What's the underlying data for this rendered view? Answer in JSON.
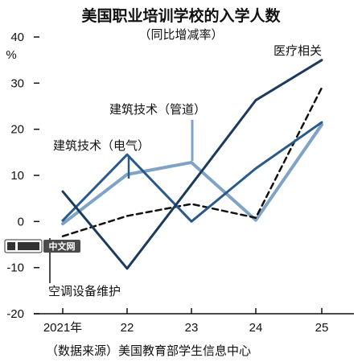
{
  "chart_data": {
    "type": "line",
    "title": "美国职业培训学校的入学人数",
    "subtitle": "（同比增减率）",
    "unit": "%",
    "categories": [
      "2021年",
      "22",
      "23",
      "24",
      "25"
    ],
    "ylim": [
      -20,
      40
    ],
    "yticks": [
      -20,
      -10,
      0,
      10,
      20,
      30,
      40
    ],
    "grid": false,
    "series": [
      {
        "name": "医疗相关",
        "color": "#1b3a5c",
        "dash": false,
        "values": [
          6.5,
          -10.2,
          8.0,
          26.3,
          35.0
        ]
      },
      {
        "name": "建筑技术（管道）",
        "color": "#7fa3c6",
        "dash": false,
        "values": [
          -0.5,
          10.2,
          12.8,
          0.3,
          21.0
        ]
      },
      {
        "name": "建筑技术（电气）",
        "color": "#2a5a8a",
        "dash": false,
        "values": [
          0.2,
          14.5,
          0.0,
          11.5,
          21.5
        ]
      },
      {
        "name": "空调设备维护",
        "color": "#111111",
        "dash": true,
        "values": [
          -3.2,
          1.2,
          3.8,
          0.8,
          29.0
        ]
      }
    ],
    "source": "（数据来源）美国教育部学生信息中心",
    "watermark": "中文网"
  }
}
